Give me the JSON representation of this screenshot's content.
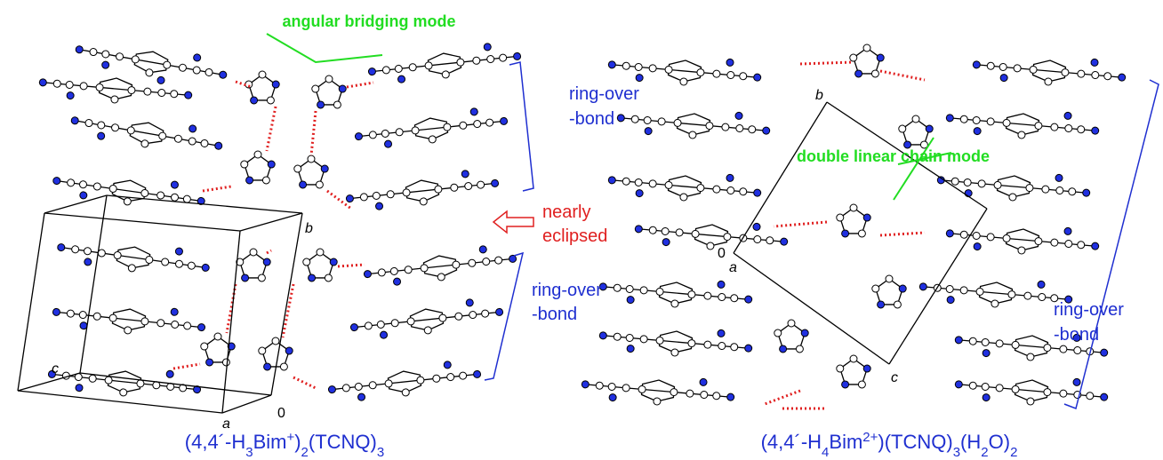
{
  "left_panel": {
    "annotation_bridging": "angular bridging mode",
    "ring_over_top": [
      "ring-over",
      "-bond"
    ],
    "nearly_eclipsed": [
      "nearly",
      "eclipsed"
    ],
    "ring_over_bottom": [
      "ring-over",
      "-bond"
    ],
    "axis_labels": {
      "b": "b",
      "c": "c",
      "a": "a",
      "origin": "0"
    },
    "caption": [
      "(4,4´-H",
      "3",
      "Bim",
      "+",
      ")",
      "2",
      "(TCNQ)",
      "3"
    ]
  },
  "right_panel": {
    "annotation_chain": "double linear chain mode",
    "ring_over": [
      "ring-over",
      "-bond"
    ],
    "axis_labels": {
      "b": "b",
      "a": "a",
      "c": "c",
      "origin": "0"
    },
    "caption": [
      "(4,4´-H",
      "4",
      "Bim",
      "2+",
      ")(TCNQ)",
      "3",
      "(H",
      "2",
      "O)",
      "2"
    ]
  }
}
